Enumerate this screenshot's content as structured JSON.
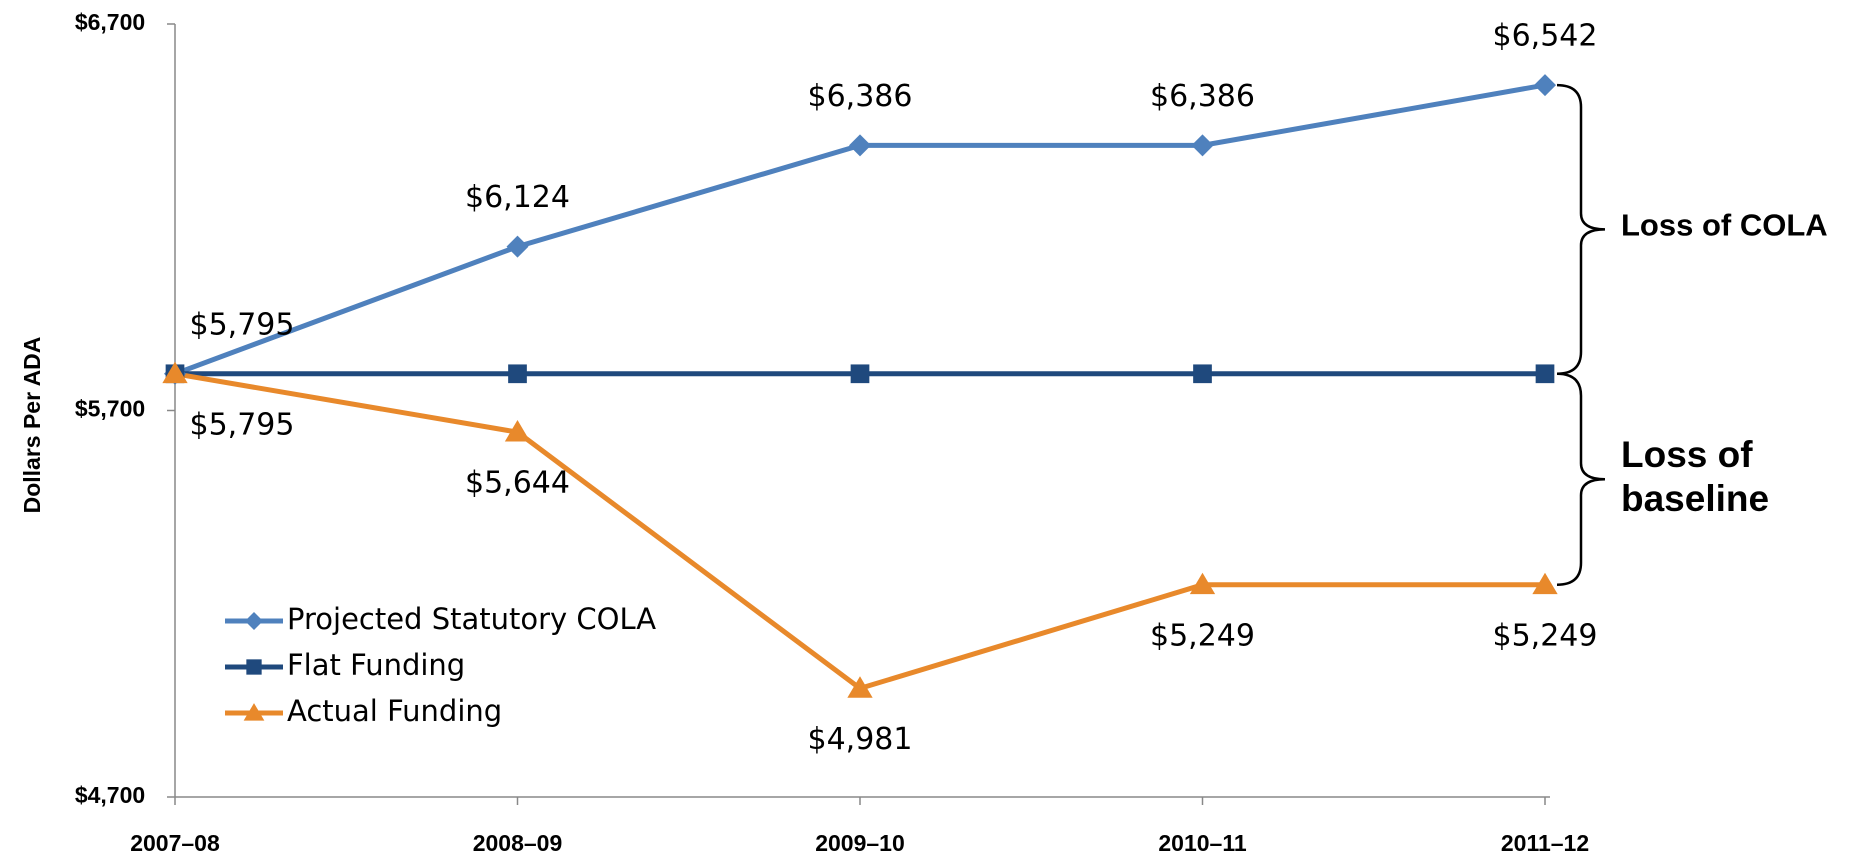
{
  "chart_data": {
    "type": "line",
    "y_label": "Dollars Per ADA",
    "categories": [
      "2007–08",
      "2008–09",
      "2009–10",
      "2010–11",
      "2011–12"
    ],
    "series": [
      {
        "name": "Projected Statutory COLA",
        "color": "#4f81bd",
        "marker": "diamond",
        "values": [
          5795,
          6124,
          6386,
          6386,
          6542
        ],
        "value_labels": [
          "$5,795",
          "$6,124",
          "$6,386",
          "$6,386",
          "$6,542"
        ],
        "label_position": "above"
      },
      {
        "name": "Flat Funding",
        "color": "#1f497d",
        "marker": "square",
        "values": [
          5795,
          5795,
          5795,
          5795,
          5795
        ]
      },
      {
        "name": "Actual Funding",
        "color": "#e8892b",
        "marker": "triangle",
        "values": [
          5795,
          5644,
          4981,
          5249,
          5249
        ],
        "value_labels": [
          "$5,795",
          "$5,644",
          "$4,981",
          "$5,249",
          "$5,249"
        ],
        "label_position": "below"
      }
    ],
    "ylim": [
      4700,
      6700
    ],
    "yticks": [
      {
        "value": 4700,
        "label": "$4,700"
      },
      {
        "value": 5700,
        "label": "$5,700"
      },
      {
        "value": 6700,
        "label": "$6,700"
      }
    ],
    "grid": false,
    "legend": "lower left",
    "annotations": [
      "Loss of COLA",
      [
        "Loss of",
        "baseline"
      ]
    ]
  }
}
